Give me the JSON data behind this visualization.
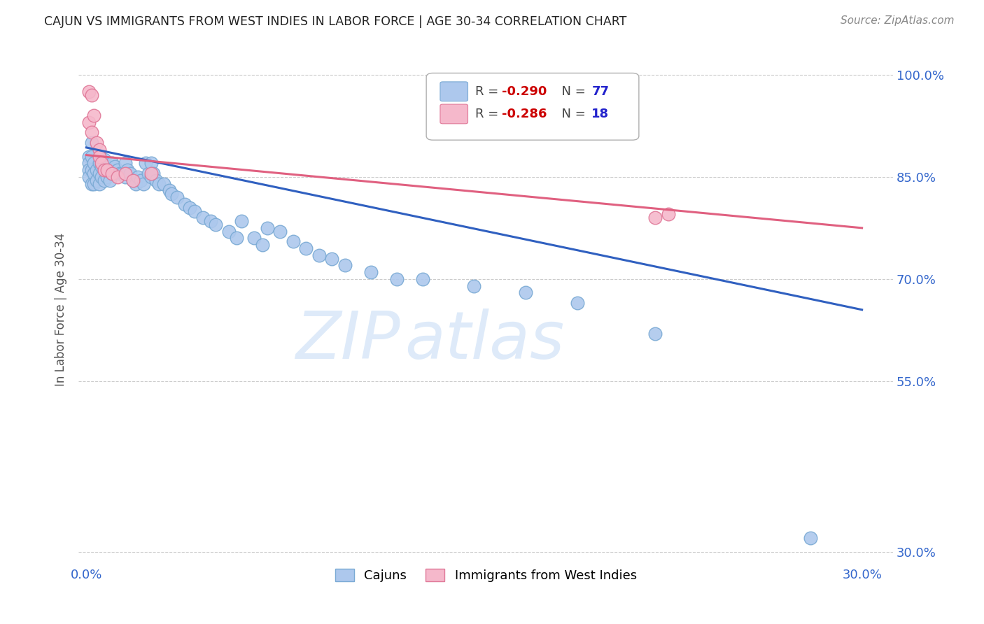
{
  "title": "CAJUN VS IMMIGRANTS FROM WEST INDIES IN LABOR FORCE | AGE 30-34 CORRELATION CHART",
  "source": "Source: ZipAtlas.com",
  "ylabel": "In Labor Force | Age 30-34",
  "xmin": -0.003,
  "xmax": 0.312,
  "ymin": 0.28,
  "ymax": 1.03,
  "cajun_color": "#adc8ed",
  "cajun_edge_color": "#7aaad4",
  "wi_color": "#f5b8cb",
  "wi_edge_color": "#e07898",
  "cajun_line_color": "#3060c0",
  "wi_line_color": "#e06080",
  "watermark": "ZIPatlas",
  "cajun_line_x0": 0.0,
  "cajun_line_y0": 0.893,
  "cajun_line_x1": 0.3,
  "cajun_line_y1": 0.655,
  "wi_line_x0": 0.0,
  "wi_line_y0": 0.882,
  "wi_line_x1": 0.3,
  "wi_line_y1": 0.775,
  "cajun_x": [
    0.001,
    0.001,
    0.001,
    0.001,
    0.002,
    0.002,
    0.002,
    0.002,
    0.003,
    0.003,
    0.003,
    0.004,
    0.004,
    0.005,
    0.005,
    0.005,
    0.006,
    0.006,
    0.007,
    0.007,
    0.007,
    0.008,
    0.008,
    0.009,
    0.009,
    0.01,
    0.01,
    0.011,
    0.012,
    0.013,
    0.014,
    0.015,
    0.015,
    0.016,
    0.017,
    0.018,
    0.019,
    0.02,
    0.021,
    0.022,
    0.023,
    0.024,
    0.025,
    0.025,
    0.026,
    0.027,
    0.028,
    0.03,
    0.032,
    0.033,
    0.035,
    0.038,
    0.04,
    0.042,
    0.045,
    0.048,
    0.05,
    0.055,
    0.058,
    0.06,
    0.065,
    0.068,
    0.07,
    0.075,
    0.08,
    0.085,
    0.09,
    0.095,
    0.1,
    0.11,
    0.12,
    0.13,
    0.15,
    0.17,
    0.19,
    0.22,
    0.28
  ],
  "cajun_y": [
    0.88,
    0.87,
    0.86,
    0.85,
    0.9,
    0.88,
    0.86,
    0.84,
    0.87,
    0.855,
    0.84,
    0.86,
    0.845,
    0.87,
    0.855,
    0.84,
    0.865,
    0.85,
    0.875,
    0.86,
    0.845,
    0.865,
    0.85,
    0.86,
    0.845,
    0.87,
    0.855,
    0.865,
    0.86,
    0.855,
    0.855,
    0.87,
    0.85,
    0.86,
    0.855,
    0.845,
    0.84,
    0.85,
    0.845,
    0.84,
    0.87,
    0.855,
    0.87,
    0.85,
    0.855,
    0.845,
    0.84,
    0.84,
    0.83,
    0.825,
    0.82,
    0.81,
    0.805,
    0.8,
    0.79,
    0.785,
    0.78,
    0.77,
    0.76,
    0.785,
    0.76,
    0.75,
    0.775,
    0.77,
    0.755,
    0.745,
    0.735,
    0.73,
    0.72,
    0.71,
    0.7,
    0.7,
    0.69,
    0.68,
    0.665,
    0.62,
    0.32
  ],
  "wi_x": [
    0.001,
    0.001,
    0.002,
    0.002,
    0.003,
    0.004,
    0.005,
    0.005,
    0.006,
    0.007,
    0.008,
    0.01,
    0.012,
    0.015,
    0.018,
    0.025,
    0.22,
    0.225
  ],
  "wi_y": [
    0.975,
    0.93,
    0.97,
    0.915,
    0.94,
    0.9,
    0.89,
    0.88,
    0.87,
    0.86,
    0.86,
    0.855,
    0.85,
    0.855,
    0.845,
    0.855,
    0.79,
    0.795
  ]
}
